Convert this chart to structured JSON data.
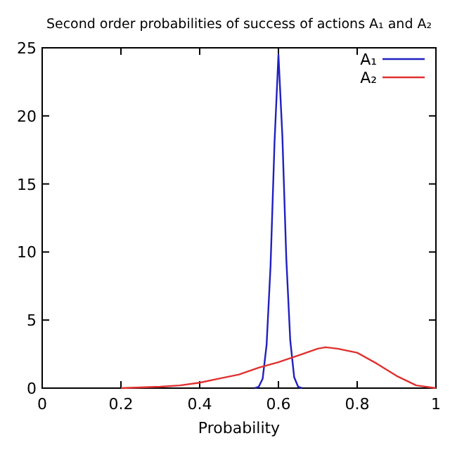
{
  "chart_data": {
    "type": "line",
    "title": "Second order probabilities of success of actions A₁ and A₂",
    "xlabel": "Probability",
    "xlim": [
      0,
      1
    ],
    "xticks": [
      0,
      0.2,
      0.4,
      0.6,
      0.8,
      1
    ],
    "ylim": [
      0,
      25
    ],
    "yticks": [
      0,
      5,
      10,
      15,
      20,
      25
    ],
    "grid": false,
    "legend": "top right",
    "marker": "none",
    "line_style": "solid",
    "series": [
      {
        "name": "A₁",
        "color": "#2020c0",
        "x": [
          0.54,
          0.55,
          0.56,
          0.57,
          0.58,
          0.59,
          0.6,
          0.61,
          0.62,
          0.63,
          0.64,
          0.65,
          0.66
        ],
        "values": [
          0,
          0.1,
          0.7,
          3.2,
          9,
          18,
          24.5,
          18.5,
          9.5,
          3.5,
          0.8,
          0.1,
          0
        ]
      },
      {
        "name": "A₂",
        "color": "#e03030",
        "x": [
          0.2,
          0.3,
          0.35,
          0.4,
          0.45,
          0.5,
          0.55,
          0.6,
          0.65,
          0.7,
          0.72,
          0.75,
          0.8,
          0.85,
          0.9,
          0.95,
          1
        ],
        "values": [
          0,
          0.1,
          0.2,
          0.4,
          0.7,
          1,
          1.5,
          1.9,
          2.4,
          2.9,
          3,
          2.9,
          2.6,
          1.8,
          0.9,
          0.2,
          0
        ]
      }
    ]
  }
}
